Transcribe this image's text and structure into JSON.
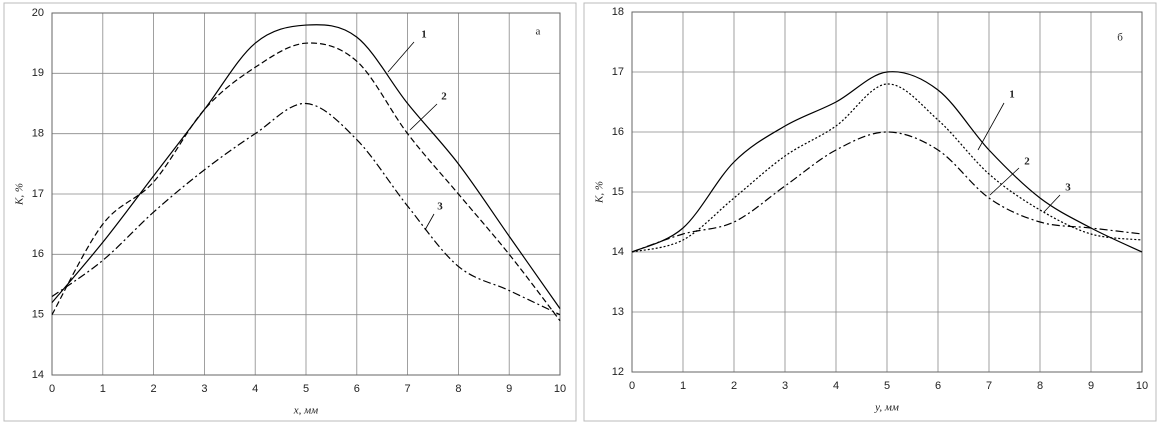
{
  "chart_data": [
    {
      "type": "line",
      "annotation": "а",
      "xlabel": "x,  мм",
      "ylabel": "K, %",
      "x": [
        0,
        1,
        2,
        3,
        4,
        5,
        6,
        7,
        8,
        9,
        10
      ],
      "xlim": [
        0,
        10
      ],
      "xticks": [
        0,
        1,
        2,
        3,
        4,
        5,
        6,
        7,
        8,
        9,
        10
      ],
      "ylim": [
        14,
        20
      ],
      "yticks": [
        14,
        15,
        16,
        17,
        18,
        19,
        20
      ],
      "grid": true,
      "series": [
        {
          "name": "1",
          "color": "#000000",
          "dash": "solid",
          "values": [
            15.2,
            16.2,
            17.3,
            18.4,
            19.5,
            19.8,
            19.6,
            18.5,
            17.5,
            16.3,
            15.1
          ]
        },
        {
          "name": "2",
          "color": "#000000",
          "dash": "dashed",
          "values": [
            15.0,
            16.5,
            17.2,
            18.4,
            19.1,
            19.5,
            19.2,
            18.0,
            17.0,
            16.0,
            14.9
          ]
        },
        {
          "name": "3",
          "color": "#000000",
          "dash": "dashdot",
          "values": [
            15.3,
            15.9,
            16.7,
            17.4,
            18.0,
            18.5,
            17.9,
            16.8,
            15.8,
            15.4,
            15.0
          ]
        }
      ]
    },
    {
      "type": "line",
      "annotation": "б",
      "xlabel": "y,  мм",
      "ylabel": "K, %",
      "x": [
        0,
        1,
        2,
        3,
        4,
        5,
        6,
        7,
        8,
        9,
        10
      ],
      "xlim": [
        0,
        10
      ],
      "xticks": [
        0,
        1,
        2,
        3,
        4,
        5,
        6,
        7,
        8,
        9,
        10
      ],
      "ylim": [
        12,
        18
      ],
      "yticks": [
        12,
        13,
        14,
        15,
        16,
        17,
        18
      ],
      "grid": true,
      "series": [
        {
          "name": "1",
          "color": "#000000",
          "dash": "solid",
          "values": [
            14.0,
            14.4,
            15.5,
            16.1,
            16.5,
            17.0,
            16.7,
            15.7,
            14.9,
            14.4,
            14.0
          ]
        },
        {
          "name": "2",
          "color": "#000000",
          "dash": "dotted",
          "values": [
            14.0,
            14.2,
            14.9,
            15.6,
            16.1,
            16.8,
            16.2,
            15.3,
            14.7,
            14.3,
            14.2
          ]
        },
        {
          "name": "3",
          "color": "#000000",
          "dash": "dashdot",
          "values": [
            14.0,
            14.3,
            14.5,
            15.1,
            15.7,
            16.0,
            15.7,
            14.9,
            14.5,
            14.4,
            14.3
          ]
        }
      ]
    }
  ]
}
